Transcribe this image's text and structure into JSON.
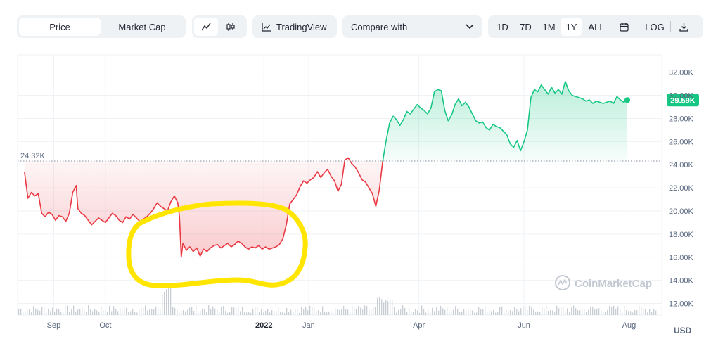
{
  "toolbar": {
    "tabs": [
      {
        "label": "Price",
        "active": true
      },
      {
        "label": "Market Cap",
        "active": false
      }
    ],
    "chart_type_icons": [
      "line-chart-icon",
      "candlestick-icon"
    ],
    "tradingview_label": "TradingView",
    "compare_label": "Compare with",
    "ranges": [
      {
        "label": "1D",
        "active": false
      },
      {
        "label": "7D",
        "active": false
      },
      {
        "label": "1M",
        "active": false
      },
      {
        "label": "1Y",
        "active": true
      },
      {
        "label": "ALL",
        "active": false
      }
    ],
    "log_label": "LOG"
  },
  "watermark": "CoinMarketCap",
  "currency": "USD",
  "colors": {
    "up": "#16c784",
    "down": "#ea3943",
    "highlight": "#ffe500",
    "volume": "#c9cdd4"
  },
  "chart_data": {
    "type": "area",
    "reference_price": 24320,
    "reference_label": "24.32K",
    "current_label": "29.59K",
    "ylim": [
      11000,
      33500
    ],
    "y_ticks": [
      {
        "value": 12000,
        "label": "12.00K"
      },
      {
        "value": 14000,
        "label": "14.00K"
      },
      {
        "value": 16000,
        "label": "16.00K"
      },
      {
        "value": 18000,
        "label": "18.00K"
      },
      {
        "value": 20000,
        "label": "20.00K"
      },
      {
        "value": 22000,
        "label": "22.00K"
      },
      {
        "value": 24000,
        "label": "24.00K"
      },
      {
        "value": 26000,
        "label": "26.00K"
      },
      {
        "value": 28000,
        "label": "28.00K"
      },
      {
        "value": 30000,
        "label": "30.00K"
      },
      {
        "value": 32000,
        "label": "32.00K"
      }
    ],
    "x_range": [
      "2021-08-11",
      "2022-08-20"
    ],
    "x_ticks": [
      {
        "date": "2021-09-01",
        "label": "Sep",
        "bold": false
      },
      {
        "date": "2021-10-01",
        "label": "Oct",
        "bold": false
      },
      {
        "date": "2022-01-01",
        "label": "2022",
        "bold": true
      },
      {
        "date": "2022-01-27",
        "label": "Jan",
        "bold": false
      },
      {
        "date": "2022-04-01",
        "label": "Apr",
        "bold": false
      },
      {
        "date": "2022-06-01",
        "label": "Jun",
        "bold": false
      },
      {
        "date": "2022-08-01",
        "label": "Aug",
        "bold": false
      }
    ],
    "grid": true,
    "series": [
      {
        "points": [
          [
            "2021-08-15",
            23400
          ],
          [
            "2021-08-17",
            21100
          ],
          [
            "2021-08-19",
            21600
          ],
          [
            "2021-08-21",
            21300
          ],
          [
            "2021-08-23",
            21500
          ],
          [
            "2021-08-25",
            19800
          ],
          [
            "2021-08-27",
            19500
          ],
          [
            "2021-08-29",
            19900
          ],
          [
            "2021-08-31",
            19700
          ],
          [
            "2021-09-02",
            19200
          ],
          [
            "2021-09-04",
            19600
          ],
          [
            "2021-09-06",
            19500
          ],
          [
            "2021-09-08",
            19100
          ],
          [
            "2021-09-10",
            19800
          ],
          [
            "2021-09-12",
            21600
          ],
          [
            "2021-09-14",
            22200
          ],
          [
            "2021-09-15",
            20200
          ],
          [
            "2021-09-17",
            19800
          ],
          [
            "2021-09-19",
            19600
          ],
          [
            "2021-09-21",
            19200
          ],
          [
            "2021-09-23",
            18800
          ],
          [
            "2021-09-25",
            19100
          ],
          [
            "2021-09-27",
            19400
          ],
          [
            "2021-09-29",
            19200
          ],
          [
            "2021-10-01",
            19000
          ],
          [
            "2021-10-03",
            19400
          ],
          [
            "2021-10-05",
            19800
          ],
          [
            "2021-10-07",
            19600
          ],
          [
            "2021-10-09",
            19200
          ],
          [
            "2021-10-11",
            19000
          ],
          [
            "2021-10-13",
            19500
          ],
          [
            "2021-10-15",
            19300
          ],
          [
            "2021-10-17",
            19700
          ],
          [
            "2021-10-19",
            19400
          ],
          [
            "2021-10-21",
            19100
          ],
          [
            "2021-10-23",
            19300
          ],
          [
            "2021-10-25",
            19500
          ],
          [
            "2021-10-27",
            19800
          ],
          [
            "2021-10-29",
            20200
          ],
          [
            "2021-10-31",
            20700
          ],
          [
            "2021-11-02",
            20400
          ],
          [
            "2021-11-04",
            20200
          ],
          [
            "2021-11-06",
            20000
          ],
          [
            "2021-11-08",
            20800
          ],
          [
            "2021-11-10",
            21300
          ],
          [
            "2021-11-12",
            20700
          ],
          [
            "2021-11-13",
            19500
          ],
          [
            "2021-11-14",
            16000
          ],
          [
            "2021-11-15",
            17200
          ],
          [
            "2021-11-17",
            16600
          ],
          [
            "2021-11-19",
            16900
          ],
          [
            "2021-11-21",
            16500
          ],
          [
            "2021-11-23",
            16800
          ],
          [
            "2021-11-25",
            16100
          ],
          [
            "2021-11-27",
            16700
          ],
          [
            "2021-11-29",
            16500
          ],
          [
            "2021-12-01",
            16800
          ],
          [
            "2021-12-03",
            17000
          ],
          [
            "2021-12-05",
            17100
          ],
          [
            "2021-12-07",
            16800
          ],
          [
            "2021-12-09",
            17000
          ],
          [
            "2021-12-11",
            17200
          ],
          [
            "2021-12-13",
            16900
          ],
          [
            "2021-12-15",
            17100
          ],
          [
            "2021-12-17",
            17400
          ],
          [
            "2021-12-19",
            17200
          ],
          [
            "2021-12-21",
            16900
          ],
          [
            "2021-12-23",
            16700
          ],
          [
            "2021-12-25",
            16900
          ],
          [
            "2021-12-27",
            16800
          ],
          [
            "2021-12-29",
            17000
          ],
          [
            "2021-12-31",
            16700
          ],
          [
            "2022-01-02",
            16900
          ],
          [
            "2022-01-04",
            16700
          ],
          [
            "2022-01-06",
            16800
          ],
          [
            "2022-01-08",
            16900
          ],
          [
            "2022-01-10",
            17100
          ],
          [
            "2022-01-12",
            17600
          ],
          [
            "2022-01-14",
            18800
          ],
          [
            "2022-01-16",
            20600
          ],
          [
            "2022-01-18",
            21000
          ],
          [
            "2022-01-20",
            21400
          ],
          [
            "2022-01-22",
            22100
          ],
          [
            "2022-01-24",
            22600
          ],
          [
            "2022-01-26",
            22400
          ],
          [
            "2022-01-28",
            22700
          ],
          [
            "2022-01-30",
            22900
          ],
          [
            "2022-02-01",
            23400
          ],
          [
            "2022-02-03",
            22900
          ],
          [
            "2022-02-05",
            23300
          ],
          [
            "2022-02-07",
            23600
          ],
          [
            "2022-02-09",
            23000
          ],
          [
            "2022-02-11",
            22600
          ],
          [
            "2022-02-13",
            21700
          ],
          [
            "2022-02-15",
            22300
          ],
          [
            "2022-02-17",
            24400
          ],
          [
            "2022-02-19",
            24600
          ],
          [
            "2022-02-21",
            24100
          ],
          [
            "2022-02-23",
            23800
          ],
          [
            "2022-02-25",
            23300
          ],
          [
            "2022-02-27",
            22700
          ],
          [
            "2022-03-01",
            22500
          ],
          [
            "2022-03-03",
            22000
          ],
          [
            "2022-03-05",
            21500
          ],
          [
            "2022-03-07",
            20400
          ],
          [
            "2022-03-09",
            21800
          ],
          [
            "2022-03-11",
            24300
          ]
        ]
      },
      {
        "points": [
          [
            "2022-03-11",
            24300
          ],
          [
            "2022-03-13",
            26100
          ],
          [
            "2022-03-15",
            27600
          ],
          [
            "2022-03-17",
            28200
          ],
          [
            "2022-03-19",
            27900
          ],
          [
            "2022-03-21",
            27400
          ],
          [
            "2022-03-23",
            27900
          ],
          [
            "2022-03-25",
            28600
          ],
          [
            "2022-03-27",
            28400
          ],
          [
            "2022-03-29",
            28800
          ],
          [
            "2022-03-31",
            29200
          ],
          [
            "2022-04-02",
            28900
          ],
          [
            "2022-04-04",
            28700
          ],
          [
            "2022-04-06",
            28400
          ],
          [
            "2022-04-08",
            28900
          ],
          [
            "2022-04-10",
            30300
          ],
          [
            "2022-04-12",
            30500
          ],
          [
            "2022-04-14",
            30400
          ],
          [
            "2022-04-16",
            28700
          ],
          [
            "2022-04-18",
            27800
          ],
          [
            "2022-04-20",
            28300
          ],
          [
            "2022-04-22",
            29200
          ],
          [
            "2022-04-24",
            29700
          ],
          [
            "2022-04-26",
            29100
          ],
          [
            "2022-04-28",
            29400
          ],
          [
            "2022-04-30",
            29000
          ],
          [
            "2022-05-02",
            28400
          ],
          [
            "2022-05-04",
            27800
          ],
          [
            "2022-05-06",
            27600
          ],
          [
            "2022-05-08",
            27700
          ],
          [
            "2022-05-10",
            27200
          ],
          [
            "2022-05-12",
            27000
          ],
          [
            "2022-05-14",
            27500
          ],
          [
            "2022-05-16",
            27300
          ],
          [
            "2022-05-18",
            27200
          ],
          [
            "2022-05-20",
            26900
          ],
          [
            "2022-05-22",
            26600
          ],
          [
            "2022-05-24",
            25800
          ],
          [
            "2022-05-26",
            25500
          ],
          [
            "2022-05-28",
            26100
          ],
          [
            "2022-05-30",
            25200
          ],
          [
            "2022-06-01",
            26000
          ],
          [
            "2022-06-03",
            27000
          ],
          [
            "2022-06-05",
            29800
          ],
          [
            "2022-06-07",
            30500
          ],
          [
            "2022-06-09",
            30300
          ],
          [
            "2022-06-11",
            30900
          ],
          [
            "2022-06-13",
            30500
          ],
          [
            "2022-06-15",
            30100
          ],
          [
            "2022-06-17",
            30700
          ],
          [
            "2022-06-19",
            30200
          ],
          [
            "2022-06-21",
            30500
          ],
          [
            "2022-06-23",
            30100
          ],
          [
            "2022-06-25",
            31200
          ],
          [
            "2022-06-27",
            30400
          ],
          [
            "2022-06-29",
            30000
          ],
          [
            "2022-07-01",
            29900
          ],
          [
            "2022-07-03",
            29800
          ],
          [
            "2022-07-05",
            29700
          ],
          [
            "2022-07-07",
            29500
          ],
          [
            "2022-07-09",
            29600
          ],
          [
            "2022-07-11",
            29300
          ],
          [
            "2022-07-13",
            29500
          ],
          [
            "2022-07-15",
            29400
          ],
          [
            "2022-07-17",
            29300
          ],
          [
            "2022-07-19",
            29400
          ],
          [
            "2022-07-21",
            29500
          ],
          [
            "2022-07-23",
            29300
          ],
          [
            "2022-07-25",
            29900
          ],
          [
            "2022-07-27",
            29600
          ],
          [
            "2022-07-29",
            29400
          ],
          [
            "2022-07-31",
            29590
          ]
        ]
      }
    ]
  }
}
